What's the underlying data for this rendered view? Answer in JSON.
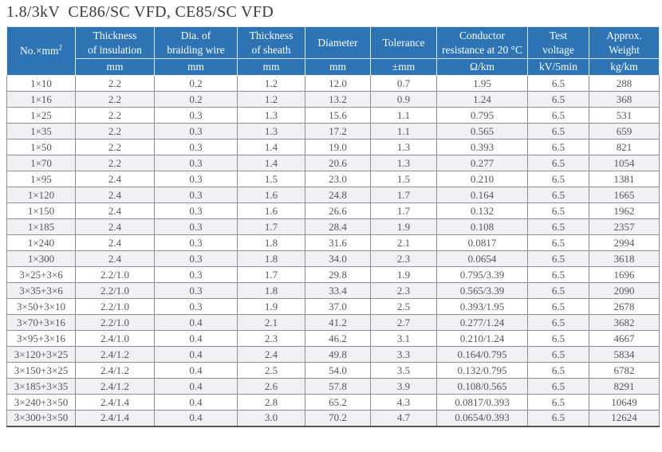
{
  "page": {
    "title": "1.8/3kV  CE86/SC VFD, CE85/SC VFD"
  },
  "colors": {
    "header_bg": "#2e74b5",
    "header_text": "#fbfdff",
    "header_border": "#dfe9f4",
    "grid": "#8f8f8f",
    "stripe": "#f1f1f5",
    "body_text": "#575757",
    "title_text": "#3c3c3c",
    "bottom_edge": "#555555"
  },
  "table": {
    "columns": [
      {
        "lines": [
          "No.×mm"
        ],
        "sup": "2",
        "unit": null
      },
      {
        "lines": [
          "Thickness",
          "of insulation"
        ],
        "unit": "mm"
      },
      {
        "lines": [
          "Dia. of",
          "braiding wire"
        ],
        "unit": "mm"
      },
      {
        "lines": [
          "Thickness",
          "of sheath"
        ],
        "unit": "mm"
      },
      {
        "lines": [
          "Diameter"
        ],
        "unit": "mm"
      },
      {
        "lines": [
          "Tolerance"
        ],
        "unit": "±mm"
      },
      {
        "lines": [
          "Conductor",
          "resistance at 20 °C"
        ],
        "unit": "Ω/km"
      },
      {
        "lines": [
          "Test",
          "voltage"
        ],
        "unit": "kV/5min"
      },
      {
        "lines": [
          "Approx.",
          "Weight"
        ],
        "unit": "kg/km"
      }
    ],
    "rows": [
      [
        "1×10",
        "2.2",
        "0.2",
        "1.2",
        "12.0",
        "0.7",
        "1.95",
        "6.5",
        "288"
      ],
      [
        "1×16",
        "2.2",
        "0.2",
        "1.2",
        "13.2",
        "0.9",
        "1.24",
        "6.5",
        "368"
      ],
      [
        "1×25",
        "2.2",
        "0.3",
        "1.3",
        "15.6",
        "1.1",
        "0.795",
        "6.5",
        "531"
      ],
      [
        "1×35",
        "2.2",
        "0.3",
        "1.3",
        "17.2",
        "1.1",
        "0.565",
        "6.5",
        "659"
      ],
      [
        "1×50",
        "2.2",
        "0.3",
        "1.4",
        "19.0",
        "1.3",
        "0.393",
        "6.5",
        "821"
      ],
      [
        "1×70",
        "2.2",
        "0.3",
        "1.4",
        "20.6",
        "1.3",
        "0.277",
        "6.5",
        "1054"
      ],
      [
        "1×95",
        "2.4",
        "0.3",
        "1.5",
        "23.0",
        "1.5",
        "0.210",
        "6.5",
        "1381"
      ],
      [
        "1×120",
        "2.4",
        "0.3",
        "1.6",
        "24.8",
        "1.7",
        "0.164",
        "6.5",
        "1665"
      ],
      [
        "1×150",
        "2.4",
        "0.3",
        "1.6",
        "26.6",
        "1.7",
        "0.132",
        "6.5",
        "1962"
      ],
      [
        "1×185",
        "2.4",
        "0.3",
        "1.7",
        "28.4",
        "1.9",
        "0.108",
        "6.5",
        "2357"
      ],
      [
        "1×240",
        "2.4",
        "0.3",
        "1.8",
        "31.6",
        "2.1",
        "0.0817",
        "6.5",
        "2994"
      ],
      [
        "1×300",
        "2.4",
        "0.3",
        "1.8",
        "34.0",
        "2.3",
        "0.0654",
        "6.5",
        "3618"
      ],
      [
        "3×25+3×6",
        "2.2/1.0",
        "0.3",
        "1.7",
        "29.8",
        "1.9",
        "0.795/3.39",
        "6.5",
        "1696"
      ],
      [
        "3×35+3×6",
        "2.2/1.0",
        "0.3",
        "1.8",
        "33.4",
        "2.3",
        "0.565/3.39",
        "6.5",
        "2090"
      ],
      [
        "3×50+3×10",
        "2.2/1.0",
        "0.3",
        "1.9",
        "37.0",
        "2.5",
        "0.393/1.95",
        "6.5",
        "2678"
      ],
      [
        "3×70+3×16",
        "2.2/1.0",
        "0.4",
        "2.1",
        "41.2",
        "2.7",
        "0.277/1.24",
        "6.5",
        "3682"
      ],
      [
        "3×95+3×16",
        "2.4/1.0",
        "0.4",
        "2.3",
        "46.2",
        "3.1",
        "0.210/1.24",
        "6.5",
        "4667"
      ],
      [
        "3×120+3×25",
        "2.4/1.2",
        "0.4",
        "2.4",
        "49.8",
        "3.3",
        "0.164/0.795",
        "6.5",
        "5834"
      ],
      [
        "3×150+3×25",
        "2.4/1.2",
        "0.4",
        "2.5",
        "54.0",
        "3.5",
        "0.132/0.795",
        "6.5",
        "6782"
      ],
      [
        "3×185+3×35",
        "2.4/1.2",
        "0.4",
        "2.6",
        "57.8",
        "3.9",
        "0.108/0.565",
        "6.5",
        "8291"
      ],
      [
        "3×240+3×50",
        "2.4/1.4",
        "0.4",
        "2.8",
        "65.2",
        "4.3",
        "0.0817/0.393",
        "6.5",
        "10649"
      ],
      [
        "3×300+3×50",
        "2.4/1.4",
        "0.4",
        "3.0",
        "70.2",
        "4.7",
        "0.0654/0.393",
        "6.5",
        "12624"
      ]
    ]
  }
}
